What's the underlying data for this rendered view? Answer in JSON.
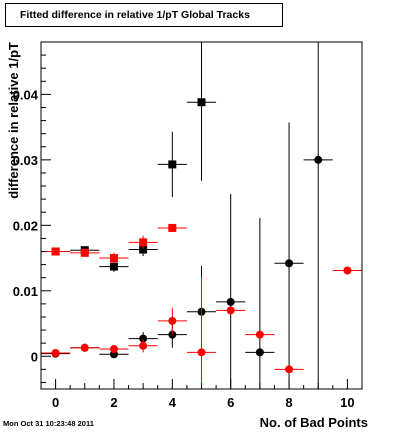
{
  "footer": {
    "timestamp": "Mon Oct 31 10:23:48 2011"
  },
  "chart_data": {
    "type": "scatter",
    "title": "Fitted difference in relative 1/pT  Global Tracks",
    "xlabel": "No. of Bad Points",
    "ylabel": "difference in relative 1/pT",
    "xlim": [
      -0.5,
      10.5
    ],
    "ylim": [
      -0.005,
      0.048
    ],
    "x_ticks": [
      0,
      2,
      4,
      6,
      8,
      10
    ],
    "y_ticks": [
      0,
      0.01,
      0.02,
      0.03,
      0.04
    ],
    "y_tick_labels": [
      "0",
      "0.01",
      "0.02",
      "0.03",
      "0.04"
    ],
    "grid": false,
    "legend": "none",
    "series": [
      {
        "color": "#000000",
        "marker": "square",
        "points": [
          {
            "x": 0,
            "y": 0.016,
            "xerr": 0.5,
            "yerr": 0.0003
          },
          {
            "x": 1,
            "y": 0.0162,
            "xerr": 0.5,
            "yerr": 0.0003
          },
          {
            "x": 2,
            "y": 0.0137,
            "xerr": 0.5,
            "yerr": 0.0008
          },
          {
            "x": 3,
            "y": 0.0163,
            "xerr": 0.5,
            "yerr": 0.001
          },
          {
            "x": 4,
            "y": 0.0293,
            "xerr": 0.5,
            "yerr": 0.005
          },
          {
            "x": 5,
            "y": 0.0388,
            "xerr": 0.5,
            "yerr": 0.012
          }
        ]
      },
      {
        "color": "#ff0000",
        "marker": "square",
        "points": [
          {
            "x": 0,
            "y": 0.016,
            "xerr": 0.5,
            "yerr": 0.0003
          },
          {
            "x": 1,
            "y": 0.0158,
            "xerr": 0.5,
            "yerr": 0.0003
          },
          {
            "x": 2,
            "y": 0.015,
            "xerr": 0.5,
            "yerr": 0.0008
          },
          {
            "x": 3,
            "y": 0.0174,
            "xerr": 0.5,
            "yerr": 0.001
          },
          {
            "x": 4,
            "y": 0.0196,
            "xerr": 0.5,
            "yerr": 0.0002
          }
        ]
      },
      {
        "color": "#000000",
        "marker": "circle",
        "points": [
          {
            "x": 0,
            "y": 0.0004,
            "xerr": 0.5,
            "yerr": 0.0002
          },
          {
            "x": 1,
            "y": 0.0013,
            "xerr": 0.5,
            "yerr": 0.0002
          },
          {
            "x": 2,
            "y": 0.0003,
            "xerr": 0.5,
            "yerr": 0.0005
          },
          {
            "x": 3,
            "y": 0.0027,
            "xerr": 0.5,
            "yerr": 0.001
          },
          {
            "x": 4,
            "y": 0.0033,
            "xerr": 0.5,
            "yerr": 0.002
          },
          {
            "x": 5,
            "y": 0.0068,
            "xerr": 0.5,
            "yerr": 0.007
          },
          {
            "x": 6,
            "y": 0.0083,
            "xerr": 0.5,
            "yerr": 0.0165
          },
          {
            "x": 7,
            "y": 0.0006,
            "xerr": 0.5,
            "yerr": 0.0205
          },
          {
            "x": 8,
            "y": 0.0142,
            "xerr": 0.5,
            "yerr": 0.0215
          },
          {
            "x": 9,
            "y": 0.03,
            "xerr": 0.5,
            "yerr": 0.035
          }
        ]
      },
      {
        "color": "#ff0000",
        "marker": "circle",
        "points": [
          {
            "x": 0,
            "y": 0.0005,
            "xerr": 0.5,
            "yerr": 0.0002
          },
          {
            "x": 1,
            "y": 0.0013,
            "xerr": 0.5,
            "yerr": 0.0002
          },
          {
            "x": 2,
            "y": 0.0011,
            "xerr": 0.5,
            "yerr": 0.0005
          },
          {
            "x": 3,
            "y": 0.0016,
            "xerr": 0.5,
            "yerr": 0.001
          },
          {
            "x": 4,
            "y": 0.0054,
            "xerr": 0.5,
            "yerr": 0.002
          },
          {
            "x": 5,
            "y": 0.0006,
            "xerr": 0.5,
            "yerr": 0.0115
          },
          {
            "x": 6,
            "y": 0.007,
            "xerr": 0.5,
            "yerr": 0.0
          },
          {
            "x": 7,
            "y": 0.0033,
            "xerr": 0.5,
            "yerr": 0.0
          },
          {
            "x": 8,
            "y": -0.002,
            "xerr": 0.5,
            "yerr": 0.0
          },
          {
            "x": 10,
            "y": 0.0131,
            "xerr": 0.5,
            "yerr": 0.0
          }
        ]
      }
    ]
  }
}
